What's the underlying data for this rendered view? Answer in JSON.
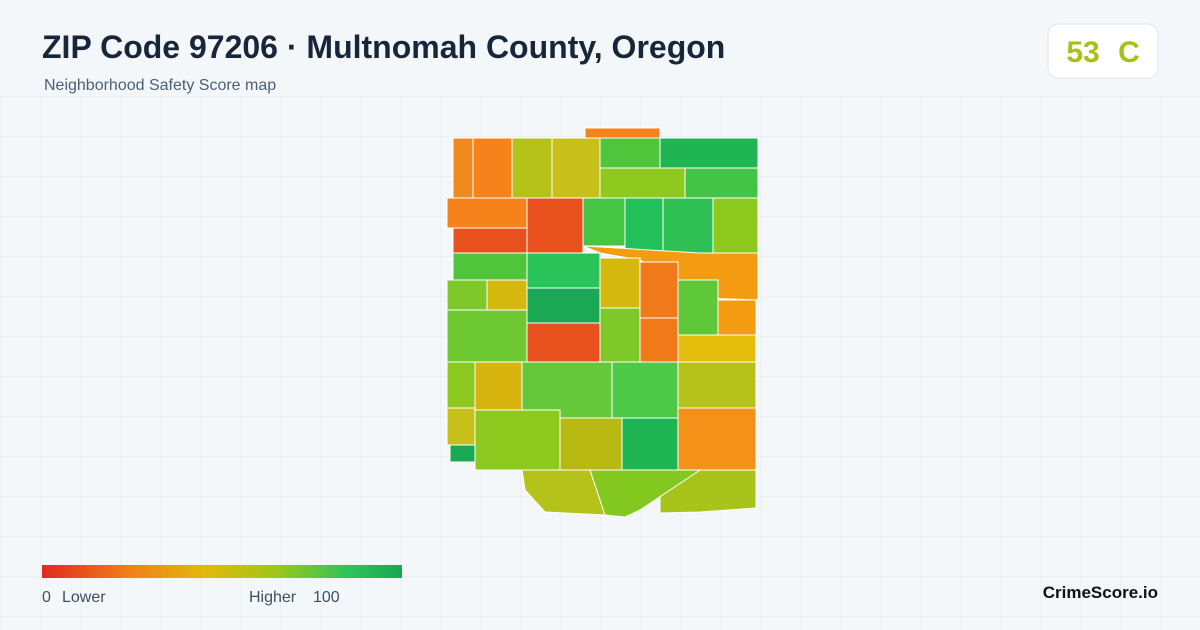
{
  "header": {
    "title": "ZIP Code 97206 · Multnomah County, Oregon",
    "subtitle": "Neighborhood Safety Score map"
  },
  "badge": {
    "score": "53",
    "grade": "C"
  },
  "legend": {
    "min": "0",
    "min_label": "Lower",
    "max_label": "Higher",
    "max": "100"
  },
  "footer": {
    "brand": "CrimeScore.io"
  }
}
